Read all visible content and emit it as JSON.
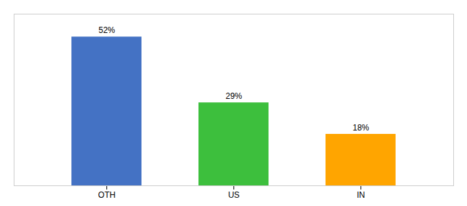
{
  "chart_data": {
    "type": "bar",
    "categories": [
      "OTH",
      "US",
      "IN"
    ],
    "values": [
      52,
      29,
      18
    ],
    "value_labels": [
      "52%",
      "29%",
      "18%"
    ],
    "colors": [
      "#4472C4",
      "#3DBF3D",
      "#FFA500"
    ],
    "ylim": [
      0,
      60
    ],
    "data_labels": true,
    "tick_labels": "x"
  }
}
